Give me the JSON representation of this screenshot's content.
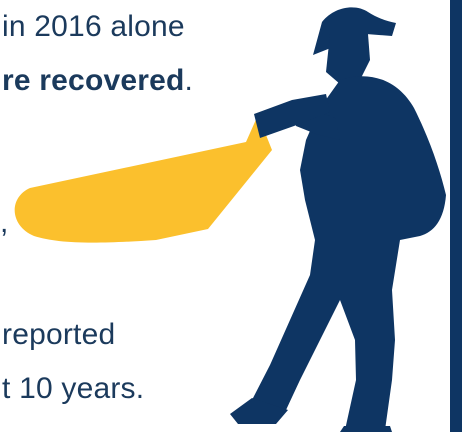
{
  "text": {
    "line1": "in 2016 alone",
    "line2_bold": "re recovered",
    "line2_tail": ".",
    "comma": ",",
    "line3": "reported",
    "line4": "t 10 years."
  },
  "colors": {
    "navy": "#0e3563",
    "text": "#1b3a5c",
    "beam": "#fbc02d",
    "background": "#ffffff"
  },
  "illustration": {
    "figure": "detective-with-flashlight-icon",
    "beam": "flashlight-beam"
  }
}
